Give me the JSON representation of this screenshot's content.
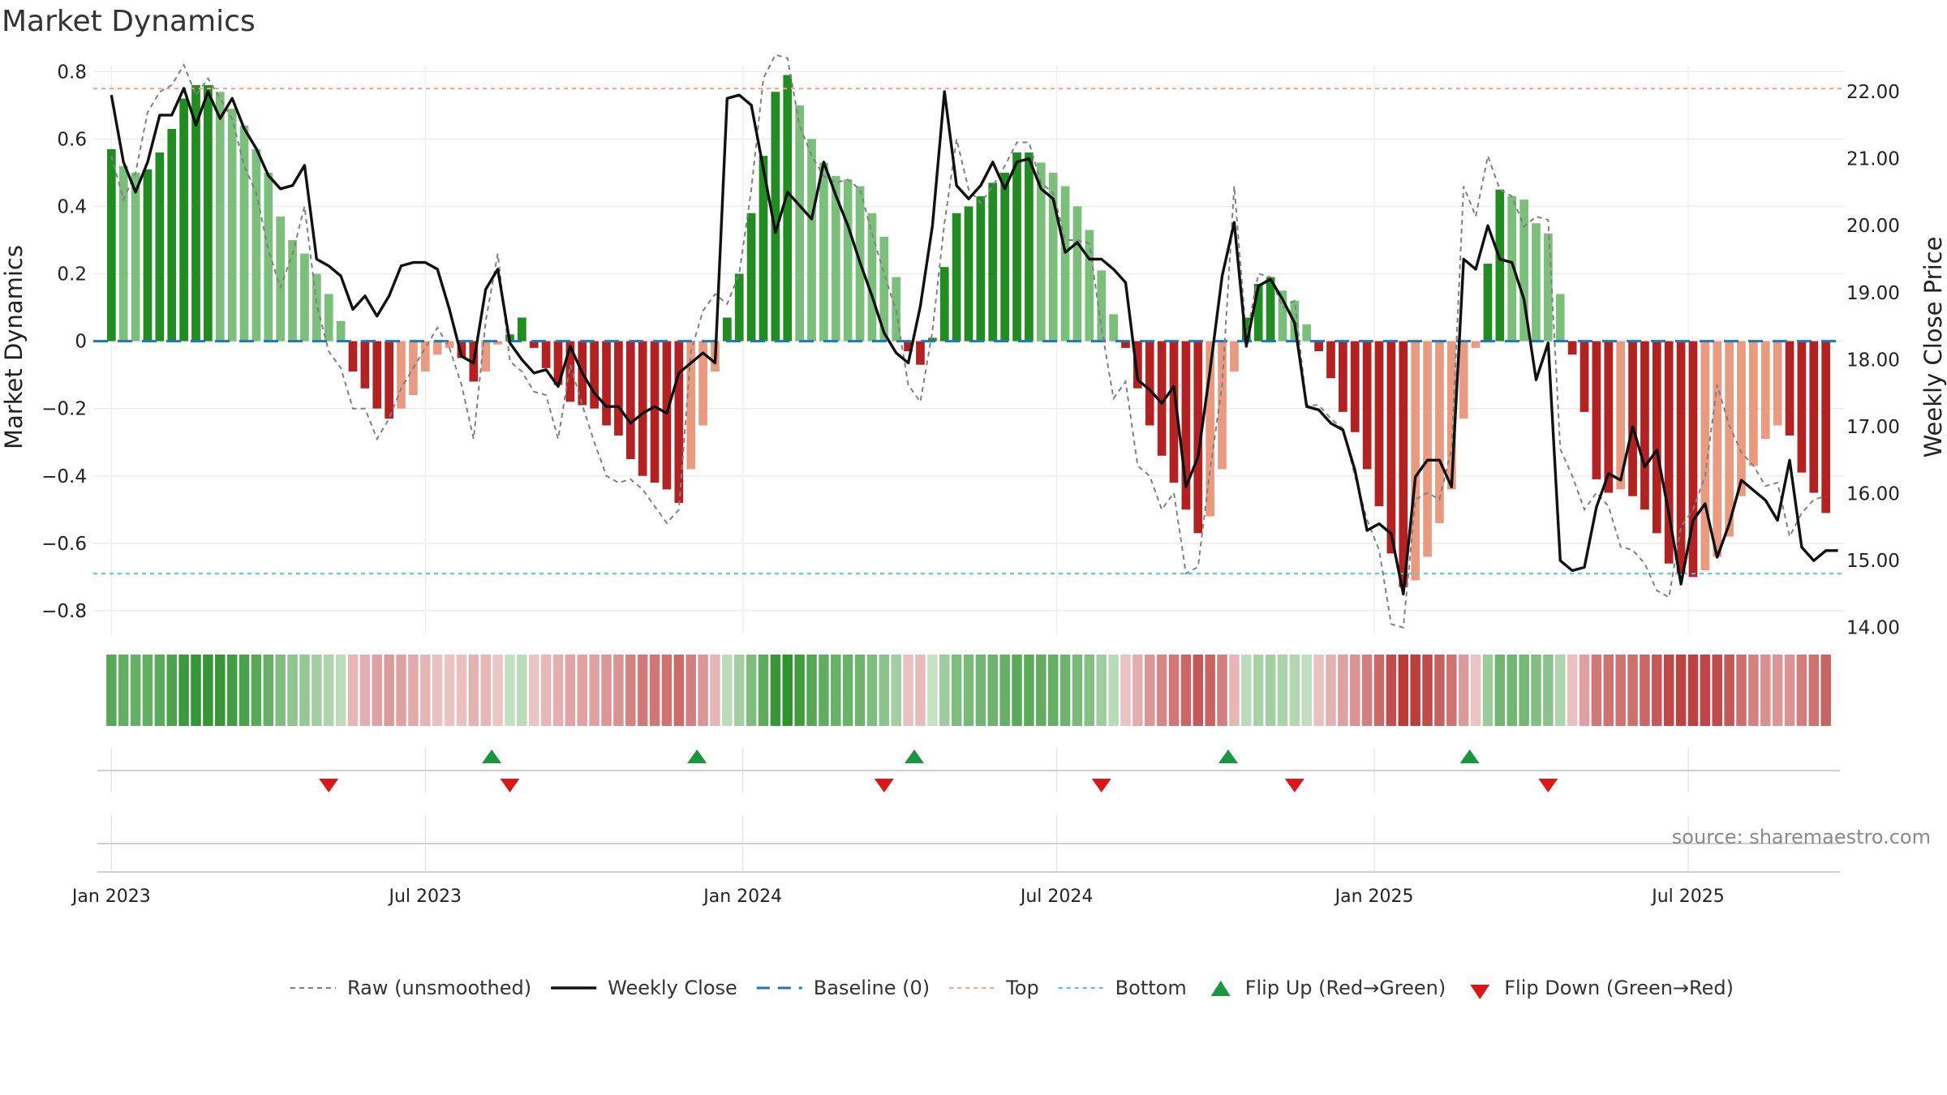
{
  "chart_data": {
    "type": "bar",
    "title": "Market Dynamics",
    "ylabel_left": "Market Dynamics",
    "ylabel_right": "Weekly Close Price",
    "left_ylim": [
      -0.87,
      0.82
    ],
    "right_ylim": [
      13.9,
      22.4
    ],
    "left_ticks": [
      "0.8",
      "0.6",
      "0.4",
      "0.2",
      "0",
      "−0.2",
      "−0.4",
      "−0.6",
      "−0.8"
    ],
    "left_tick_values": [
      0.8,
      0.6,
      0.4,
      0.2,
      0,
      -0.2,
      -0.4,
      -0.6,
      -0.8
    ],
    "right_ticks": [
      "22.00",
      "21.00",
      "20.00",
      "19.00",
      "18.00",
      "17.00",
      "16.00",
      "15.00",
      "14.00"
    ],
    "right_tick_values": [
      22,
      21,
      20,
      19,
      18,
      17,
      16,
      15,
      14
    ],
    "top_line": 0.75,
    "bottom_line": -0.69,
    "baseline": 0,
    "x_range": [
      -1.5,
      143.5
    ],
    "x_ticks": [
      {
        "label": "Jan 2023",
        "week": 0
      },
      {
        "label": "Jul 2023",
        "week": 26
      },
      {
        "label": "Jan 2024",
        "week": 52.3
      },
      {
        "label": "Jul 2024",
        "week": 78.3
      },
      {
        "label": "Jan 2025",
        "week": 104.6
      },
      {
        "label": "Jul 2025",
        "week": 130.6
      }
    ],
    "first_week_label": "Jan 2023",
    "dynamics": [
      0.57,
      0.52,
      0.5,
      0.51,
      0.56,
      0.63,
      0.72,
      0.76,
      0.76,
      0.74,
      0.69,
      0.64,
      0.57,
      0.5,
      0.37,
      0.3,
      0.26,
      0.2,
      0.14,
      0.06,
      -0.09,
      -0.14,
      -0.2,
      -0.23,
      -0.2,
      -0.16,
      -0.09,
      -0.04,
      -0.02,
      -0.05,
      -0.12,
      -0.09,
      -0.01,
      0.02,
      0.07,
      -0.02,
      -0.08,
      -0.13,
      -0.18,
      -0.19,
      -0.2,
      -0.25,
      -0.28,
      -0.35,
      -0.4,
      -0.42,
      -0.44,
      -0.48,
      -0.38,
      -0.25,
      -0.09,
      0.07,
      0.2,
      0.38,
      0.55,
      0.74,
      0.79,
      0.7,
      0.6,
      0.53,
      0.49,
      0.48,
      0.46,
      0.38,
      0.31,
      0.19,
      -0.03,
      -0.07,
      0.01,
      0.22,
      0.38,
      0.4,
      0.43,
      0.47,
      0.5,
      0.56,
      0.56,
      0.53,
      0.5,
      0.46,
      0.4,
      0.33,
      0.21,
      0.08,
      -0.02,
      -0.14,
      -0.25,
      -0.34,
      -0.42,
      -0.5,
      -0.57,
      -0.52,
      -0.38,
      -0.09,
      0.07,
      0.17,
      0.19,
      0.15,
      0.12,
      0.05,
      -0.03,
      -0.11,
      -0.21,
      -0.27,
      -0.38,
      -0.49,
      -0.63,
      -0.73,
      -0.71,
      -0.64,
      -0.54,
      -0.44,
      -0.23,
      -0.02,
      0.23,
      0.45,
      0.43,
      0.42,
      0.35,
      0.32,
      0.14,
      -0.04,
      -0.21,
      -0.41,
      -0.45,
      -0.44,
      -0.46,
      -0.5,
      -0.57,
      -0.66,
      -0.69,
      -0.7,
      -0.68,
      -0.64,
      -0.58,
      -0.46,
      -0.37,
      -0.29,
      -0.25,
      -0.28,
      -0.39,
      -0.45,
      -0.51
    ],
    "raw": [
      0.55,
      0.42,
      0.5,
      0.68,
      0.74,
      0.76,
      0.82,
      0.73,
      0.78,
      0.72,
      0.66,
      0.52,
      0.44,
      0.27,
      0.16,
      0.26,
      0.4,
      0.11,
      -0.03,
      -0.08,
      -0.2,
      -0.2,
      -0.29,
      -0.23,
      -0.14,
      -0.08,
      -0.02,
      0.04,
      -0.02,
      -0.13,
      -0.29,
      0.06,
      0.26,
      -0.06,
      -0.09,
      -0.15,
      -0.16,
      -0.29,
      -0.07,
      -0.19,
      -0.3,
      -0.4,
      -0.42,
      -0.41,
      -0.44,
      -0.49,
      -0.54,
      -0.5,
      -0.03,
      0.09,
      0.14,
      0.11,
      0.2,
      0.45,
      0.78,
      0.85,
      0.84,
      0.64,
      0.55,
      0.49,
      0.47,
      0.48,
      0.45,
      0.32,
      0.2,
      0.09,
      -0.13,
      -0.18,
      0.03,
      0.35,
      0.6,
      0.45,
      0.41,
      0.46,
      0.52,
      0.59,
      0.59,
      0.47,
      0.44,
      0.3,
      0.3,
      0.29,
      0.04,
      -0.17,
      -0.12,
      -0.37,
      -0.4,
      -0.5,
      -0.45,
      -0.69,
      -0.67,
      -0.38,
      -0.13,
      0.46,
      0.01,
      0.2,
      0.19,
      0.1,
      0.12,
      -0.19,
      -0.19,
      -0.23,
      -0.26,
      -0.4,
      -0.53,
      -0.62,
      -0.84,
      -0.85,
      -0.47,
      -0.45,
      -0.47,
      -0.32,
      0.46,
      0.37,
      0.55,
      0.45,
      0.43,
      0.34,
      0.37,
      0.36,
      -0.32,
      -0.4,
      -0.5,
      -0.45,
      -0.49,
      -0.61,
      -0.62,
      -0.66,
      -0.74,
      -0.76,
      -0.55,
      -0.5,
      -0.4,
      -0.13,
      -0.25,
      -0.33,
      -0.37,
      -0.43,
      -0.42,
      -0.58,
      -0.51,
      -0.47,
      -0.46
    ],
    "weekly_close": [
      21.95,
      20.95,
      20.5,
      20.95,
      21.65,
      21.65,
      22.05,
      21.5,
      22.0,
      21.6,
      21.9,
      21.45,
      21.15,
      20.75,
      20.55,
      20.6,
      20.9,
      19.5,
      19.4,
      19.25,
      18.75,
      18.95,
      18.65,
      18.95,
      19.4,
      19.45,
      19.45,
      19.35,
      18.75,
      18.05,
      17.95,
      19.05,
      19.35,
      18.25,
      18.0,
      17.8,
      17.85,
      17.6,
      18.2,
      17.8,
      17.5,
      17.3,
      17.3,
      17.05,
      17.2,
      17.3,
      17.2,
      17.8,
      17.95,
      18.1,
      17.95,
      21.9,
      21.95,
      21.8,
      20.85,
      19.9,
      20.5,
      20.3,
      20.1,
      20.95,
      20.45,
      20.0,
      19.45,
      18.95,
      18.4,
      18.1,
      17.95,
      18.8,
      20.0,
      22.0,
      20.6,
      20.4,
      20.6,
      20.95,
      20.55,
      20.95,
      21.0,
      20.55,
      20.4,
      19.6,
      19.75,
      19.5,
      19.5,
      19.35,
      19.15,
      17.7,
      17.55,
      17.35,
      17.6,
      16.1,
      16.55,
      17.85,
      19.25,
      20.05,
      18.2,
      19.1,
      19.2,
      18.9,
      18.55,
      17.3,
      17.25,
      17.05,
      16.95,
      16.35,
      15.45,
      15.55,
      15.4,
      14.5,
      16.25,
      16.5,
      16.5,
      16.1,
      19.5,
      19.35,
      20.0,
      19.5,
      19.45,
      18.9,
      17.7,
      18.25,
      15.0,
      14.85,
      14.9,
      15.8,
      16.3,
      16.2,
      17.0,
      16.4,
      16.65,
      15.7,
      14.65,
      15.6,
      15.85,
      15.05,
      15.55,
      16.2,
      16.05,
      15.9,
      15.6,
      16.5,
      15.2,
      15.0,
      15.15,
      15.15
    ],
    "flip_up_weeks": [
      31.5,
      48.5,
      66.5,
      92.5,
      112.5
    ],
    "flip_down_weeks": [
      18,
      33,
      64,
      82,
      98,
      119
    ],
    "colors": {
      "dark_green": "#228b22",
      "light_green": "#7cbf7c",
      "dark_red": "#b22222",
      "light_red": "#e89b80",
      "raw": "#808080",
      "close": "#111111",
      "baseline": "#1f77b4",
      "top": "#f4a582",
      "bottom": "#5bc0de",
      "flip_up": "#1a9641",
      "flip_down": "#d7191c"
    }
  },
  "legend": [
    {
      "label": "Raw (unsmoothed)",
      "kind": "dashed-line",
      "color": "#808080"
    },
    {
      "label": "Weekly Close",
      "kind": "line",
      "color": "#111111"
    },
    {
      "label": "Baseline (0)",
      "kind": "dashed-line",
      "color": "#1f77b4"
    },
    {
      "label": "Top",
      "kind": "dotted-line",
      "color": "#f4a582"
    },
    {
      "label": "Bottom",
      "kind": "dotted-line",
      "color": "#5bc0de"
    },
    {
      "label": "Flip Up (Red→Green)",
      "kind": "triangle-up",
      "color": "#1a9641"
    },
    {
      "label": "Flip Down (Green→Red)",
      "kind": "triangle-down",
      "color": "#d7191c"
    }
  ],
  "source_text": "source: sharemaestro.com"
}
